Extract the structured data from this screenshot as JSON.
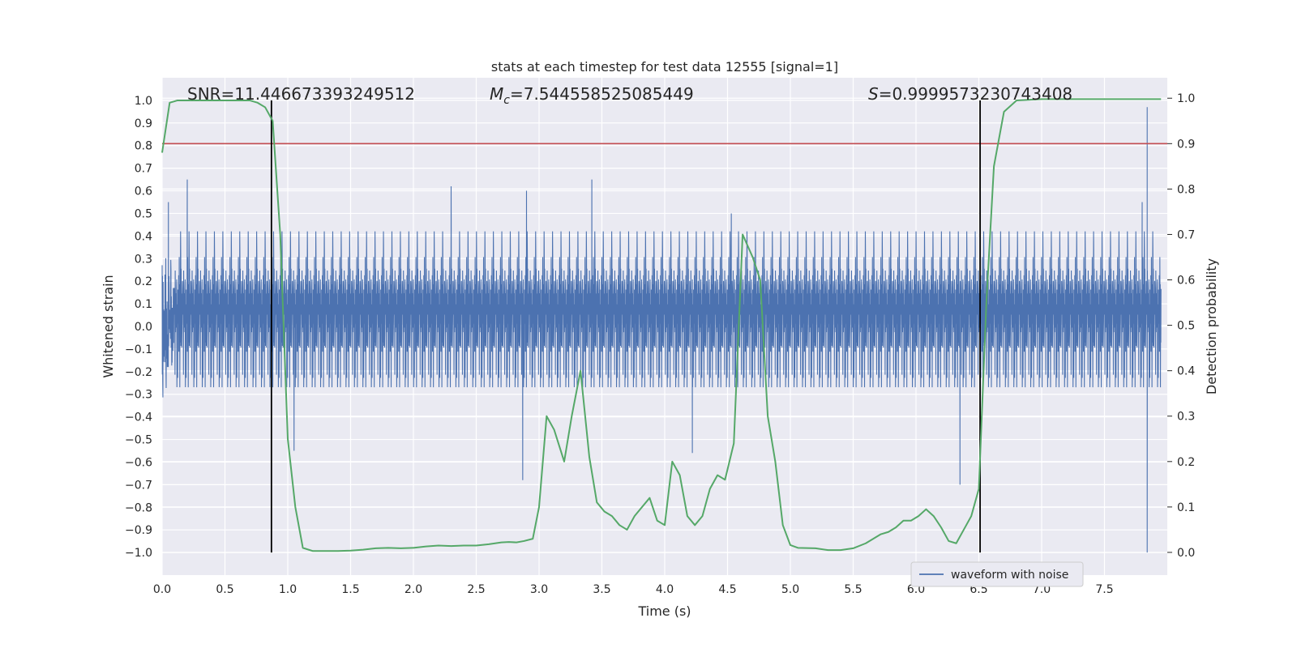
{
  "chart_data": {
    "type": "line",
    "title": "stats at each timestep for test data 12555 [signal=1]",
    "xlabel": "Time (s)",
    "ylabel_left": "Whitened strain",
    "ylabel_right": "Detection probability",
    "xlim": [
      0.0,
      8.0
    ],
    "ylim_left": [
      -1.1,
      1.1
    ],
    "ylim_right": [
      -0.05,
      1.045
    ],
    "x_ticks": [
      "0.0",
      "0.5",
      "1.0",
      "1.5",
      "2.0",
      "2.5",
      "3.0",
      "3.5",
      "4.0",
      "4.5",
      "5.0",
      "5.5",
      "6.0",
      "6.5",
      "7.0",
      "7.5"
    ],
    "y_left_ticks": [
      "1.0",
      "0.9",
      "0.8",
      "0.7",
      "0.6",
      "0.5",
      "0.4",
      "0.3",
      "0.2",
      "0.1",
      "0.0",
      "−0.1",
      "−0.2",
      "−0.3",
      "−0.4",
      "−0.5",
      "−0.6",
      "−0.7",
      "−0.8",
      "−0.9",
      "−1.0"
    ],
    "y_right_ticks": [
      "1.0",
      "0.9",
      "0.8",
      "0.7",
      "0.6",
      "0.5",
      "0.4",
      "0.3",
      "0.2",
      "0.1",
      "0.0"
    ],
    "grid": true,
    "legend_position": "bottom-right",
    "annotations": {
      "snr": "SNR=11.446673393249512",
      "mc_symbol": "M",
      "mc_sub": "c",
      "mc_value": "=7.544558525085449",
      "s_symbol": "S",
      "s_value": "=0.9999573230743408"
    },
    "series": [
      {
        "name": "waveform with noise",
        "axis": "left",
        "color": "#4c72b0",
        "description_of_envelope": "dense noise, typical amplitude ±0.3, peaks ±0.6",
        "spikes": [
          {
            "x": 0.05,
            "y": 0.55
          },
          {
            "x": 0.2,
            "y": 0.65
          },
          {
            "x": 0.87,
            "y": -0.42
          },
          {
            "x": 1.05,
            "y": -0.55
          },
          {
            "x": 2.3,
            "y": 0.62
          },
          {
            "x": 2.87,
            "y": -0.68
          },
          {
            "x": 2.9,
            "y": 0.6
          },
          {
            "x": 3.42,
            "y": 0.65
          },
          {
            "x": 4.22,
            "y": -0.56
          },
          {
            "x": 4.53,
            "y": 0.5
          },
          {
            "x": 6.35,
            "y": -0.7
          },
          {
            "x": 7.84,
            "y": 0.97
          },
          {
            "x": 7.84,
            "y": -1.0
          },
          {
            "x": 7.8,
            "y": 0.55
          }
        ]
      },
      {
        "name": "detection probability",
        "axis": "right",
        "color": "#55a868",
        "x": [
          0.0,
          0.06,
          0.12,
          0.2,
          0.3,
          0.4,
          0.5,
          0.6,
          0.7,
          0.76,
          0.82,
          0.88,
          0.94,
          1.0,
          1.06,
          1.12,
          1.2,
          1.3,
          1.4,
          1.5,
          1.6,
          1.7,
          1.8,
          1.9,
          2.0,
          2.1,
          2.2,
          2.3,
          2.4,
          2.5,
          2.6,
          2.7,
          2.76,
          2.82,
          2.88,
          2.95,
          3.0,
          3.06,
          3.12,
          3.2,
          3.26,
          3.33,
          3.4,
          3.46,
          3.52,
          3.58,
          3.64,
          3.7,
          3.76,
          3.82,
          3.88,
          3.94,
          4.0,
          4.06,
          4.12,
          4.18,
          4.24,
          4.3,
          4.36,
          4.42,
          4.48,
          4.55,
          4.62,
          4.7,
          4.76,
          4.82,
          4.88,
          4.94,
          5.0,
          5.06,
          5.2,
          5.3,
          5.4,
          5.5,
          5.6,
          5.66,
          5.72,
          5.78,
          5.84,
          5.9,
          5.96,
          6.02,
          6.08,
          6.14,
          6.2,
          6.26,
          6.32,
          6.38,
          6.44,
          6.5,
          6.56,
          6.62,
          6.7,
          6.8,
          7.0,
          7.2,
          7.4,
          7.6,
          7.8,
          7.95
        ],
        "y": [
          0.88,
          0.99,
          0.995,
          0.995,
          0.995,
          0.995,
          0.995,
          0.995,
          0.995,
          0.99,
          0.98,
          0.95,
          0.7,
          0.25,
          0.1,
          0.01,
          0.003,
          0.003,
          0.003,
          0.004,
          0.006,
          0.009,
          0.01,
          0.009,
          0.01,
          0.013,
          0.015,
          0.014,
          0.015,
          0.015,
          0.018,
          0.022,
          0.023,
          0.022,
          0.025,
          0.03,
          0.1,
          0.3,
          0.27,
          0.2,
          0.3,
          0.4,
          0.21,
          0.11,
          0.09,
          0.08,
          0.06,
          0.05,
          0.08,
          0.1,
          0.12,
          0.07,
          0.06,
          0.2,
          0.17,
          0.08,
          0.06,
          0.08,
          0.14,
          0.17,
          0.16,
          0.24,
          0.7,
          0.65,
          0.6,
          0.3,
          0.2,
          0.06,
          0.016,
          0.01,
          0.009,
          0.005,
          0.005,
          0.009,
          0.02,
          0.03,
          0.04,
          0.045,
          0.055,
          0.07,
          0.07,
          0.08,
          0.095,
          0.08,
          0.055,
          0.025,
          0.02,
          0.05,
          0.08,
          0.14,
          0.55,
          0.85,
          0.97,
          0.995,
          0.998,
          0.998,
          0.998,
          0.998,
          0.998,
          0.998
        ]
      },
      {
        "name": "threshold",
        "axis": "right",
        "color": "#c44e52",
        "y": 0.9
      },
      {
        "name": "detection start",
        "axis": "left",
        "color": "#000000",
        "x": 0.87
      },
      {
        "name": "detection end",
        "axis": "left",
        "color": "#000000",
        "x": 6.51
      }
    ]
  }
}
